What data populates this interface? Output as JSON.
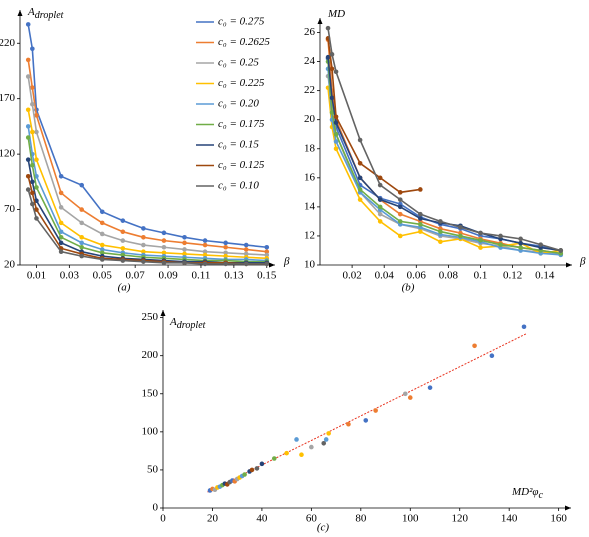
{
  "chart_data": [
    {
      "type": "line",
      "caption": "(a)",
      "xlabel": "β",
      "ylabel": {
        "main": "A",
        "sub": "droplet"
      },
      "x": [
        0.005,
        0.0075,
        0.01,
        0.025,
        0.0375,
        0.05,
        0.0625,
        0.075,
        0.0875,
        0.1,
        0.1125,
        0.125,
        0.1375,
        0.15
      ],
      "xlim": [
        0,
        0.155
      ],
      "xticks": [
        0.01,
        0.03,
        0.05,
        0.07,
        0.09,
        0.11,
        0.13,
        0.15
      ],
      "ylim": [
        20,
        250
      ],
      "yticks": [
        20,
        70,
        120,
        170,
        220
      ],
      "legend": "upper right",
      "series": [
        {
          "name": "c₀ = 0.275",
          "color": "#4472c4",
          "values": [
            237,
            215,
            160,
            100,
            92,
            68,
            60,
            53,
            49,
            45,
            42,
            40,
            38,
            36
          ]
        },
        {
          "name": "c₀ = 0.2625",
          "color": "#ed7d31",
          "values": [
            205,
            180,
            155,
            85,
            70,
            58,
            50,
            45,
            42,
            40,
            38,
            36,
            34,
            32
          ]
        },
        {
          "name": "c₀ = 0.25",
          "color": "#a5a5a5",
          "values": [
            190,
            165,
            140,
            72,
            58,
            48,
            42,
            38,
            36,
            34,
            32,
            31,
            30,
            29
          ]
        },
        {
          "name": "c₀ = 0.225",
          "color": "#ffc000",
          "values": [
            160,
            140,
            115,
            58,
            45,
            38,
            35,
            32,
            31,
            30,
            29,
            28,
            27,
            26
          ]
        },
        {
          "name": "c₀ = 0.20",
          "color": "#5b9bd5",
          "values": [
            145,
            120,
            100,
            50,
            40,
            34,
            31,
            29,
            28,
            27,
            26,
            25,
            25,
            24
          ]
        },
        {
          "name": "c₀ = 0.175",
          "color": "#70ad47",
          "values": [
            135,
            110,
            90,
            45,
            36,
            31,
            29,
            27,
            26,
            25,
            24,
            24,
            23,
            23
          ]
        },
        {
          "name": "c₀ = 0.15",
          "color": "#264478",
          "values": [
            115,
            95,
            78,
            40,
            32,
            28,
            26,
            25,
            24,
            23,
            23,
            22,
            22,
            22
          ]
        },
        {
          "name": "c₀ = 0.125",
          "color": "#9e480e",
          "values": [
            100,
            85,
            70,
            35,
            30,
            26,
            25,
            24,
            23,
            22,
            22,
            22,
            21,
            21
          ]
        },
        {
          "name": "c₀ = 0.10",
          "color": "#636363",
          "values": [
            88,
            75,
            62,
            32,
            28,
            25,
            24,
            23,
            22,
            22,
            21,
            21,
            21,
            21
          ]
        }
      ]
    },
    {
      "type": "line",
      "caption": "(b)",
      "xlabel": "β",
      "ylabel": {
        "main": "MD"
      },
      "x": [
        0.005,
        0.0075,
        0.01,
        0.025,
        0.0375,
        0.05,
        0.0625,
        0.075,
        0.0875,
        0.1,
        0.1125,
        0.125,
        0.1375,
        0.15
      ],
      "xlim": [
        0,
        0.157
      ],
      "xticks": [
        0.02,
        0.04,
        0.06,
        0.08,
        0.1,
        0.12,
        0.14
      ],
      "ylim": [
        10,
        27
      ],
      "yticks": [
        10,
        12,
        14,
        16,
        18,
        20,
        22,
        24,
        26
      ],
      "series": [
        {
          "color": "#4472c4",
          "values": [
            24.2,
            21,
            19.5,
            15.5,
            14.6,
            14.2,
            13.3,
            12.8,
            12.5,
            12,
            11.8,
            11.5,
            11.3,
            11
          ]
        },
        {
          "color": "#ed7d31",
          "values": [
            25.5,
            22,
            20,
            16,
            14.5,
            13.5,
            13,
            12.5,
            12.2,
            11.8,
            11.5,
            11.2,
            11,
            10.8
          ]
        },
        {
          "color": "#a5a5a5",
          "values": [
            23,
            21,
            19,
            15,
            13.5,
            12.8,
            12.5,
            12,
            11.8,
            11.5,
            11.3,
            11,
            10.9,
            10.7
          ]
        },
        {
          "color": "#ffc000",
          "values": [
            22.2,
            19.5,
            18,
            14.5,
            13,
            12,
            12.3,
            11.6,
            11.8,
            11.2,
            11.3,
            11.5,
            10.8,
            11
          ]
        },
        {
          "color": "#5b9bd5",
          "values": [
            23.5,
            20,
            18.5,
            15,
            13.8,
            12.8,
            12.6,
            12.1,
            11.9,
            11.6,
            11.2,
            11,
            10.8,
            10.7
          ]
        },
        {
          "color": "#70ad47",
          "values": [
            24,
            20.5,
            19,
            15.2,
            14,
            13,
            12.8,
            12.3,
            12,
            11.7,
            11.4,
            11.2,
            11,
            10.8
          ]
        },
        {
          "color": "#264478",
          "values": [
            24.3,
            21.5,
            19.8,
            16,
            14.5,
            14,
            13.2,
            12.9,
            12.7,
            12.2,
            11.8,
            11.5,
            11.2,
            11
          ]
        },
        {
          "color": "#9e480e",
          "values": [
            25.6,
            23.5,
            20.2,
            17,
            16,
            15,
            15.2,
            null,
            null,
            null,
            null,
            null,
            null,
            null
          ]
        },
        {
          "color": "#636363",
          "values": [
            26.3,
            24.5,
            23.3,
            18.6,
            15.5,
            14.5,
            13.5,
            13,
            12.6,
            12.2,
            12,
            11.8,
            11.4,
            11
          ]
        }
      ]
    },
    {
      "type": "scatter",
      "caption": "(c)",
      "xlabel": {
        "main": "MD²φ",
        "sub": "c"
      },
      "ylabel": {
        "main": "A",
        "sub": "droplet"
      },
      "xlim": [
        0,
        165
      ],
      "xticks": [
        0,
        20,
        40,
        60,
        80,
        100,
        120,
        140,
        160
      ],
      "ylim": [
        0,
        260
      ],
      "yticks": [
        0,
        50,
        100,
        150,
        200,
        250
      ],
      "x": [
        19,
        20,
        21,
        22,
        23,
        24,
        25,
        26,
        27,
        28,
        29,
        30,
        31,
        32,
        33,
        35,
        36,
        38,
        40,
        45,
        50,
        54,
        56,
        60,
        65,
        66,
        67,
        75,
        82,
        86,
        98,
        100,
        108,
        126,
        133,
        146
      ],
      "y": [
        23,
        25,
        24,
        27,
        28,
        30,
        32,
        31,
        34,
        36,
        35,
        38,
        40,
        42,
        44,
        48,
        50,
        52,
        58,
        65,
        72,
        90,
        70,
        80,
        85,
        90,
        98,
        110,
        115,
        128,
        150,
        145,
        158,
        213,
        200,
        238
      ],
      "colors": [
        "#4472c4",
        "#ed7d31",
        "#a5a5a5",
        "#ffc000",
        "#5b9bd5",
        "#70ad47",
        "#264478",
        "#9e480e",
        "#636363",
        "#4472c4",
        "#ed7d31",
        "#a5a5a5",
        "#ffc000",
        "#5b9bd5",
        "#70ad47",
        "#264478",
        "#9e480e",
        "#636363",
        "#264478",
        "#70ad47",
        "#ffc000",
        "#5b9bd5",
        "#ffc000",
        "#a5a5a5",
        "#636363",
        "#5b9bd5",
        "#ffc000",
        "#ed7d31",
        "#4472c4",
        "#ed7d31",
        "#a5a5a5",
        "#ed7d31",
        "#4472c4",
        "#ed7d31",
        "#4472c4",
        "#4472c4"
      ],
      "trendline": {
        "color": "#e8321e",
        "x": [
          18,
          147
        ],
        "y": [
          21,
          229
        ]
      }
    }
  ]
}
